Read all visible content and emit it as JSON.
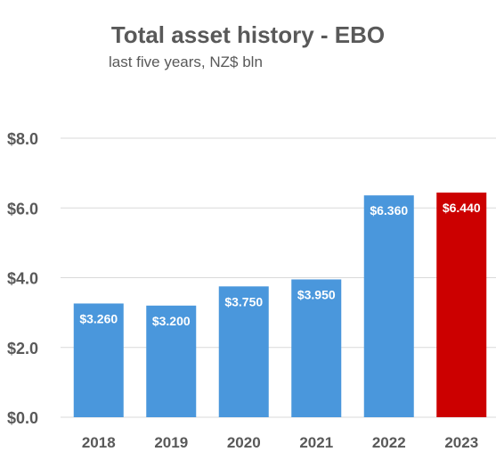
{
  "chart_data": {
    "type": "bar",
    "title": "Total asset history - EBO",
    "subtitle": "last five years, NZ$ bln",
    "categories": [
      "2018",
      "2019",
      "2020",
      "2021",
      "2022",
      "2023"
    ],
    "values": [
      3.26,
      3.2,
      3.75,
      3.95,
      6.36,
      6.44
    ],
    "data_labels": [
      "$3.260",
      "$3.200",
      "$3.750",
      "$3.950",
      "$6.360",
      "$6.440"
    ],
    "ylim": [
      0,
      8
    ],
    "yticks": [
      0,
      2,
      4,
      6,
      8
    ],
    "ytick_labels": [
      "$0.0",
      "$2.0",
      "$4.0",
      "$6.0",
      "$8.0"
    ],
    "xlabel": "",
    "ylabel": "",
    "grid": true,
    "legend": "none",
    "bar_color": "#4A97DC",
    "highlight_color": "#CC0000",
    "highlight_index": 5
  }
}
